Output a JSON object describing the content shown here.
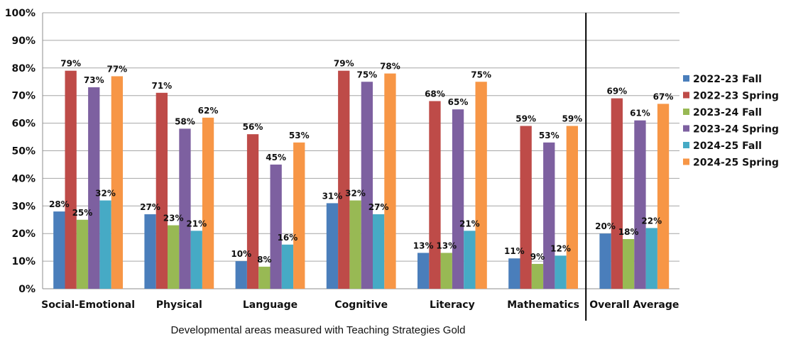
{
  "chart_data": {
    "type": "bar",
    "xlabel": "Developmental areas measured with Teaching Strategies Gold",
    "ylabel": "",
    "ylim": [
      0,
      100
    ],
    "y_ticks": [
      "0%",
      "10%",
      "20%",
      "30%",
      "40%",
      "50%",
      "60%",
      "70%",
      "80%",
      "90%",
      "100%"
    ],
    "value_suffix": "%",
    "grid": true,
    "legend_position": "right",
    "categories": [
      "Social-Emotional",
      "Physical",
      "Language",
      "Cognitive",
      "Literacy",
      "Mathematics",
      "Overall Average"
    ],
    "series": [
      {
        "name": "2022-23 Fall",
        "color": "#4a7ebb",
        "values": [
          28,
          27,
          10,
          31,
          13,
          11,
          20
        ]
      },
      {
        "name": "2022-23 Spring",
        "color": "#be4b48",
        "values": [
          79,
          71,
          56,
          79,
          68,
          59,
          69
        ]
      },
      {
        "name": "2023-24 Fall",
        "color": "#98b954",
        "values": [
          25,
          23,
          8,
          32,
          13,
          9,
          18
        ]
      },
      {
        "name": "2023-24 Spring",
        "color": "#7d60a0",
        "values": [
          73,
          58,
          45,
          75,
          65,
          53,
          61
        ]
      },
      {
        "name": "2024-25 Fall",
        "color": "#46aac5",
        "values": [
          32,
          21,
          16,
          27,
          21,
          12,
          22
        ]
      },
      {
        "name": "2024-25 Spring",
        "color": "#f79646",
        "values": [
          77,
          62,
          53,
          78,
          75,
          59,
          67
        ]
      }
    ]
  }
}
